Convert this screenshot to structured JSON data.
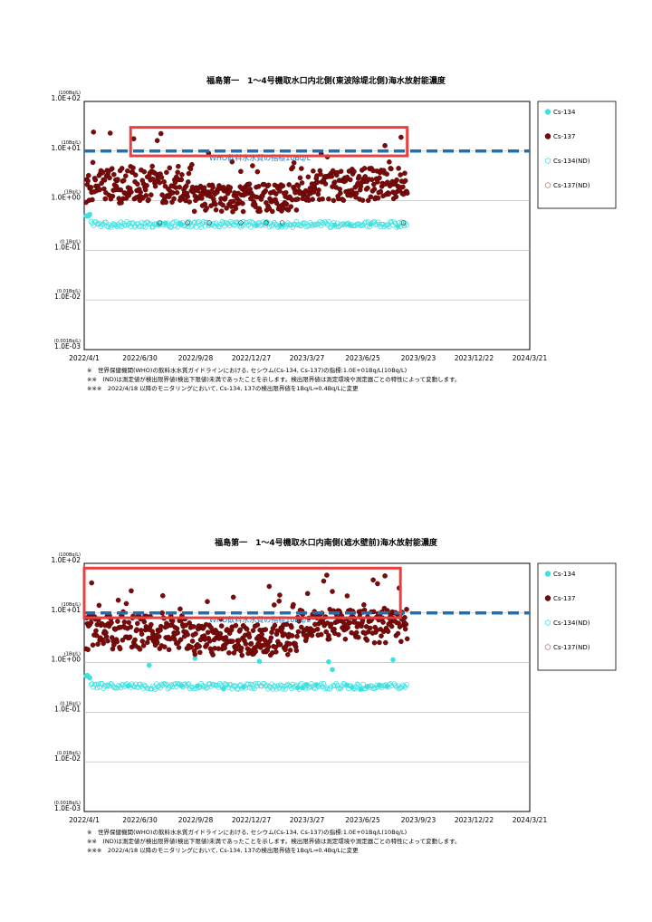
{
  "charts": [
    {
      "title": "福島第一　1～4号機取水口内北側(東波除堤北側)海水放射能濃度",
      "who_label": "WHO飲料水水質の指標10Bq/L",
      "notes": [
        "※　世界保健機関(WHO)の飲料水水質ガイドラインにおける, セシウム(Cs-134, Cs-137)の指標:1.0E+01Bq/L(10Bq/L)",
        "※※　(ND)は測定値が検出限界値(検出下限値)未満であったことを示します。検出限界値は測定環境や測定器ごとの特性によって変動します。",
        "※※※　2022/4/18 以降のモニタリングにおいて, Cs-134, 137の検出限界値を1Bq/L⇒0.4Bq/Lに変更"
      ]
    },
    {
      "title": "福島第一　1～4号機取水口内南側(遮水壁前)海水放射能濃度",
      "who_label": "WHO飲料水水質の指標10Bq/L",
      "notes": [
        "※　世界保健機関(WHO)の飲料水水質ガイドラインにおける, セシウム(Cs-134, Cs-137)の指標:1.0E+01Bq/L(10Bq/L)",
        "※※　(ND)は測定値が検出限界値(検出下限値)未満であったことを示します。検出限界値は測定環境や測定器ごとの特性によって変動します。",
        "※※※　2022/4/18 以降のモニタリングにおいて, Cs-134, 137の検出限界値を1Bq/L⇒0.4Bq/Lに変更"
      ]
    }
  ],
  "chart_data": [
    {
      "type": "scatter",
      "title": "福島第一　1～4号機取水口内北側(東波除堤北側)海水放射能濃度",
      "y_scale": "log",
      "ylim": [
        0.001,
        100
      ],
      "y_ticks": [
        "1.0E+02",
        "1.0E+01",
        "1.0E+00",
        "1.0E-01",
        "1.0E-02",
        "1.0E-03"
      ],
      "y_unit_labels": [
        "(100Bq/L)",
        "(10Bq/L)",
        "(1Bq/L)",
        "(0.1Bq/L)",
        "(0.01Bq/L)",
        "(0.001Bq/L)"
      ],
      "x_ticks": [
        "2022/4/1",
        "2022/6/30",
        "2022/9/28",
        "2022/12/27",
        "2023/3/27",
        "2023/6/25",
        "2023/9/23",
        "2023/12/22",
        "2024/3/21"
      ],
      "legend": [
        "Cs-134",
        "Cs-137",
        "Cs-134(ND)",
        "Cs-137(ND)"
      ],
      "legend_position": "right",
      "reference_line": {
        "value": 10,
        "label": "WHO飲料水水質の指標10Bq/L",
        "color": "#1f6fb4"
      },
      "highlight_box": {
        "x_from": "2022/6/15",
        "x_to": "2023/9/5",
        "y_from": 8,
        "y_to": 30,
        "color": "#e8403f"
      },
      "cs137_range_by_period": [
        {
          "period": "2022/4-2022/9",
          "typical_min": 0.9,
          "typical_max": 5,
          "peak": 14
        },
        {
          "period": "2022/10-2023/3",
          "typical_min": 0.5,
          "typical_max": 2,
          "peak": 8
        },
        {
          "period": "2023/4-2023/9",
          "typical_min": 1,
          "typical_max": 5,
          "peak": 22
        }
      ],
      "cs134_typical": {
        "min": 0.28,
        "max": 0.4,
        "detected_early": 0.5
      }
    },
    {
      "type": "scatter",
      "title": "福島第一　1～4号機取水口内南側(遮水壁前)海水放射能濃度",
      "y_scale": "log",
      "ylim": [
        0.001,
        100
      ],
      "y_ticks": [
        "1.0E+02",
        "1.0E+01",
        "1.0E+00",
        "1.0E-01",
        "1.0E-02",
        "1.0E-03"
      ],
      "y_unit_labels": [
        "(100Bq/L)",
        "(10Bq/L)",
        "(1Bq/L)",
        "(0.1Bq/L)",
        "(0.01Bq/L)",
        "(0.001Bq/L)"
      ],
      "x_ticks": [
        "2022/4/1",
        "2022/6/30",
        "2022/9/28",
        "2022/12/27",
        "2023/3/27",
        "2023/6/25",
        "2023/9/23",
        "2023/12/22",
        "2024/3/21"
      ],
      "legend": [
        "Cs-134",
        "Cs-137",
        "Cs-134(ND)",
        "Cs-137(ND)"
      ],
      "legend_position": "right",
      "reference_line": {
        "value": 10,
        "label": "WHO飲料水水質の指標10Bq/L",
        "color": "#1f6fb4"
      },
      "highlight_box": {
        "x_from": "2022/4/1",
        "x_to": "2023/8/25",
        "y_from": 8,
        "y_to": 80,
        "color": "#e8403f"
      },
      "cs137_range_by_period": [
        {
          "period": "2022/4-2022/9",
          "typical_min": 2,
          "typical_max": 10,
          "peak": 40
        },
        {
          "period": "2022/10-2023/3",
          "typical_min": 1.5,
          "typical_max": 6,
          "peak": 30
        },
        {
          "period": "2023/4-2023/9",
          "typical_min": 3,
          "typical_max": 15,
          "peak": 50
        }
      ],
      "cs134_typical": {
        "min": 0.28,
        "max": 0.5,
        "detected_peak": 1.1
      }
    }
  ],
  "colors": {
    "cs134": "#3fe0e0",
    "cs137": "#7b0b0b",
    "who_line": "#1f6fb4",
    "highlight": "#e8403f",
    "gridline": "#b0b0b0"
  }
}
